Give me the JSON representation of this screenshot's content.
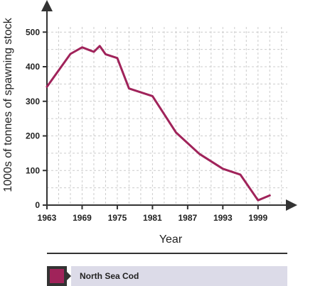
{
  "colors": {
    "series": "#a0235a",
    "axis": "#333333",
    "grid": "#cccccc",
    "legend_bg": "#dcdbe8"
  },
  "chart_data": {
    "type": "line",
    "title": "",
    "xlabel": "Year",
    "ylabel": "1000s of tonnes of spawning stock",
    "xlim": [
      1963,
      2004
    ],
    "ylim": [
      0,
      560
    ],
    "x_ticks": [
      1963,
      1969,
      1975,
      1981,
      1987,
      1993,
      1999
    ],
    "x_tick_labels": [
      "1963",
      "1969",
      "1975",
      "1981",
      "1987",
      "1993",
      "1999"
    ],
    "y_ticks": [
      0,
      100,
      200,
      300,
      400,
      500
    ],
    "y_tick_labels": [
      "0",
      "100",
      "200",
      "300",
      "400",
      "500"
    ],
    "grid": true,
    "legend_position": "bottom",
    "series": [
      {
        "name": "North Sea Cod",
        "x": [
          1963,
          1967,
          1969,
          1971,
          1972,
          1973,
          1975,
          1977,
          1981,
          1985,
          1989,
          1993,
          1996,
          1999,
          2001
        ],
        "values": [
          342,
          437,
          456,
          443,
          460,
          436,
          425,
          337,
          315,
          210,
          148,
          105,
          88,
          14,
          28
        ]
      }
    ]
  }
}
